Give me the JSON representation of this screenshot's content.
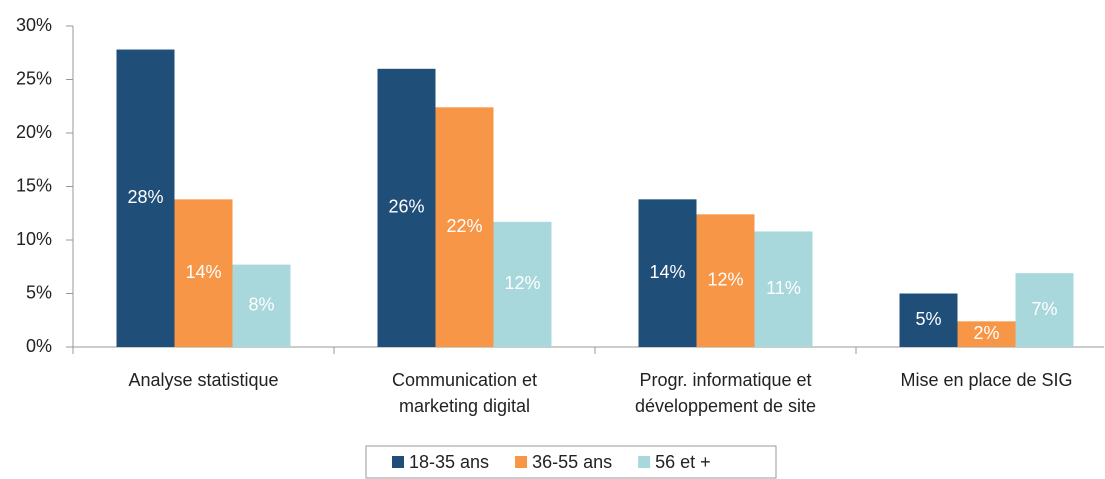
{
  "chart_data": {
    "type": "bar",
    "categories": [
      "Analyse statistique",
      "Communication et\nmarketing digital",
      "Progr. informatique et\ndéveloppement de site",
      "Mise en place de SIG"
    ],
    "series": [
      {
        "name": "18-35 ans",
        "color": "#1f4e79",
        "values": [
          27.8,
          26.0,
          13.8,
          5.0
        ],
        "value_labels": [
          "28%",
          "26%",
          "14%",
          "5%"
        ]
      },
      {
        "name": "36-55 ans",
        "color": "#f79646",
        "values": [
          13.8,
          22.4,
          12.4,
          2.4
        ],
        "value_labels": [
          "14%",
          "22%",
          "12%",
          "2%"
        ]
      },
      {
        "name": "56 et +",
        "color": "#a8d8dc",
        "values": [
          7.7,
          11.7,
          10.8,
          6.9
        ],
        "value_labels": [
          "8%",
          "12%",
          "11%",
          "7%"
        ]
      }
    ],
    "ylim": [
      0,
      30
    ],
    "yticks": [
      {
        "value": 0,
        "label": "0%"
      },
      {
        "value": 5,
        "label": "5%"
      },
      {
        "value": 10,
        "label": "10%"
      },
      {
        "value": 15,
        "label": "15%"
      },
      {
        "value": 20,
        "label": "20%"
      },
      {
        "value": 25,
        "label": "25%"
      },
      {
        "value": 30,
        "label": "30%"
      }
    ],
    "legend": "bottom",
    "grid": false
  }
}
